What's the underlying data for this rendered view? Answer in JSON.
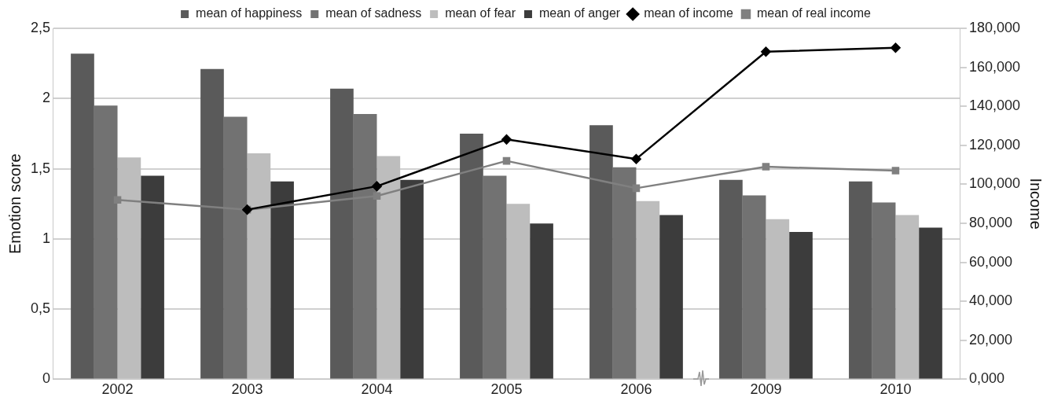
{
  "chart_data": {
    "type": "bar",
    "categories": [
      "2002",
      "2003",
      "2004",
      "2005",
      "2006",
      "2009",
      "2010"
    ],
    "ylabel": "Emotion score",
    "y2label": "Income",
    "ylim": [
      0,
      2.5
    ],
    "yticks": [
      0,
      {
        "value": 0.5,
        "label": "0,5"
      },
      1,
      {
        "value": 1.5,
        "label": "1,5"
      },
      2,
      {
        "value": 2.5,
        "label": "2,5"
      }
    ],
    "y2lim": [
      0,
      180
    ],
    "y2ticks": [
      {
        "value": 0,
        "label": "0,000"
      },
      {
        "value": 20,
        "label": "20,000"
      },
      {
        "value": 40,
        "label": "40,000"
      },
      {
        "value": 60,
        "label": "60,000"
      },
      {
        "value": 80,
        "label": "80,000"
      },
      {
        "value": 100,
        "label": "100,000"
      },
      {
        "value": 120,
        "label": "120,000"
      },
      {
        "value": 140,
        "label": "140,000"
      },
      {
        "value": 160,
        "label": "160,000"
      },
      {
        "value": 180,
        "label": "180,000"
      }
    ],
    "grid": "y",
    "legend": "top",
    "line_style": "solid",
    "series": [
      {
        "name": "mean of happiness",
        "color": "#5a5a5a",
        "values": [
          2.32,
          2.21,
          2.07,
          1.75,
          1.81,
          1.42,
          1.41
        ]
      },
      {
        "name": "mean of sadness",
        "color": "#727272",
        "values": [
          1.95,
          1.87,
          1.89,
          1.45,
          1.51,
          1.31,
          1.26
        ]
      },
      {
        "name": "mean of fear",
        "color": "#bdbdbd",
        "values": [
          1.58,
          1.61,
          1.59,
          1.25,
          1.27,
          1.14,
          1.17
        ]
      },
      {
        "name": "mean of anger",
        "color": "#3c3c3c",
        "values": [
          1.45,
          1.41,
          1.42,
          1.11,
          1.17,
          1.05,
          1.08
        ]
      },
      {
        "name": "mean of income",
        "type": "line",
        "axis": "y2",
        "marker": "diamond",
        "color": "#000000",
        "values": [
          null,
          87,
          99,
          123,
          113,
          168,
          170
        ]
      },
      {
        "name": "mean of real income",
        "type": "line",
        "axis": "y2",
        "marker": "square",
        "color": "#808080",
        "values": [
          92,
          87,
          94,
          112,
          98,
          109,
          107
        ]
      }
    ]
  }
}
